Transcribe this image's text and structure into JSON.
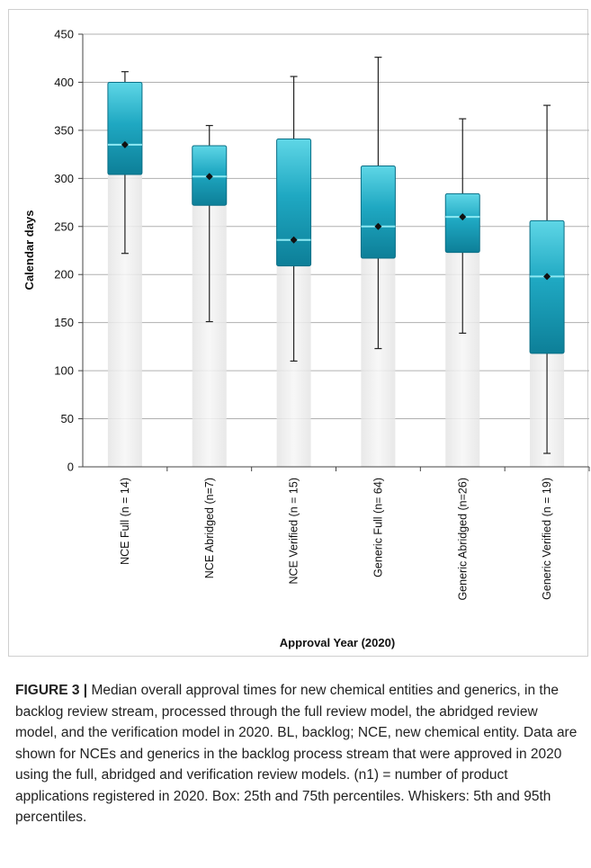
{
  "chart_data": {
    "type": "box",
    "ylabel": "Calendar days",
    "xlabel": "Approval Year (2020)",
    "ylim": [
      0,
      450
    ],
    "yticks": [
      0,
      50,
      100,
      150,
      200,
      250,
      300,
      350,
      400,
      450
    ],
    "grid": true,
    "categories": [
      "NCE Full (n = 14)",
      "NCE Abridged (n=7)",
      "NCE Verified (n = 15)",
      "Generic Full (n= 64)",
      "Generic Abridged (n=26)",
      "Generic Verified (n = 19)"
    ],
    "boxes": [
      {
        "whisker_low": 222,
        "q1": 304,
        "median": 335,
        "q3": 400,
        "whisker_high": 411,
        "mean": 335
      },
      {
        "whisker_low": 151,
        "q1": 272,
        "median": 302,
        "q3": 334,
        "whisker_high": 355,
        "mean": 302
      },
      {
        "whisker_low": 110,
        "q1": 209,
        "median": 236,
        "q3": 341,
        "whisker_high": 406,
        "mean": 236
      },
      {
        "whisker_low": 123,
        "q1": 217,
        "median": 250,
        "q3": 313,
        "whisker_high": 426,
        "mean": 250
      },
      {
        "whisker_low": 139,
        "q1": 223,
        "median": 260,
        "q3": 284,
        "whisker_high": 362,
        "mean": 260
      },
      {
        "whisker_low": 14,
        "q1": 118,
        "median": 198,
        "q3": 256,
        "whisker_high": 376,
        "mean": 198
      }
    ],
    "colors": {
      "box_top": "#5ed6e6",
      "box_mid": "#1fa8c2",
      "box_bottom": "#0d7f98",
      "grid": "#b0b0b0",
      "whisker": "#222222",
      "mean_marker": "#111111"
    }
  },
  "caption": {
    "label": "FIGURE 3 |",
    "text": " Median overall approval times for new chemical entities and generics, in the backlog review stream, processed through the full review model, the abridged review model, and the verification model in 2020. BL, backlog; NCE, new chemical entity. Data are shown for NCEs and generics in the backlog process stream that were approved in 2020 using the full, abridged and verification review models. (n1) = number of product applications registered in 2020. Box: 25th and 75th percentiles. Whiskers: 5th and 95th percentiles."
  }
}
